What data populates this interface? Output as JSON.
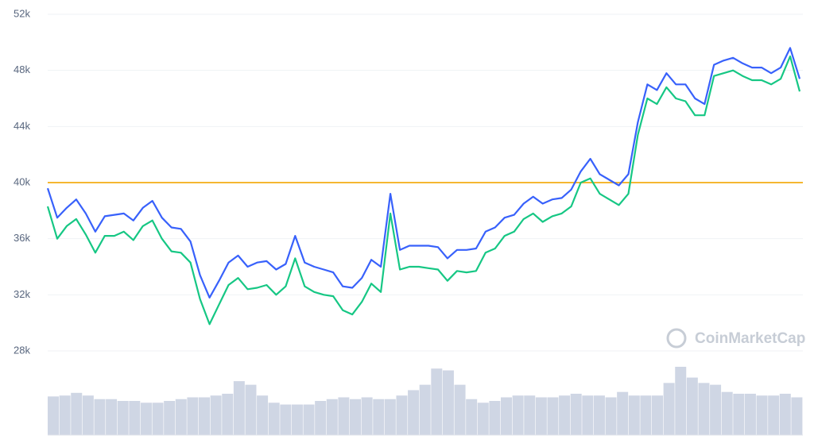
{
  "chart_data": {
    "type": "line",
    "ylim": [
      28000,
      52000
    ],
    "yticks": [
      {
        "value": 28000,
        "label": "28k"
      },
      {
        "value": 32000,
        "label": "32k"
      },
      {
        "value": 36000,
        "label": "36k"
      },
      {
        "value": 40000,
        "label": "40k"
      },
      {
        "value": 44000,
        "label": "44k"
      },
      {
        "value": 48000,
        "label": "48k"
      },
      {
        "value": 52000,
        "label": "52k"
      }
    ],
    "grid": true,
    "reference_line": {
      "value": 40000,
      "color": "#f5b731"
    },
    "series": [
      {
        "color": "#3861fb",
        "values": [
          39600,
          37500,
          38200,
          38800,
          37800,
          36500,
          37600,
          37700,
          37800,
          37300,
          38200,
          38700,
          37500,
          36800,
          36700,
          35800,
          33400,
          31800,
          33000,
          34300,
          34800,
          34000,
          34300,
          34400,
          33800,
          34200,
          36200,
          34300,
          34000,
          33800,
          33600,
          32600,
          32500,
          33200,
          34500,
          34000,
          39200,
          35200,
          35500,
          35500,
          35500,
          35400,
          34600,
          35200,
          35200,
          35300,
          36500,
          36800,
          37500,
          37700,
          38500,
          39000,
          38500,
          38800,
          38900,
          39500,
          40800,
          41700,
          40600,
          40200,
          39800,
          40600,
          44300,
          47000,
          46600,
          47800,
          47000,
          47000,
          46000,
          45600,
          48400,
          48700,
          48900,
          48500,
          48200,
          48200,
          47800,
          48200,
          49600,
          47400
        ]
      },
      {
        "color": "#16c784",
        "values": [
          38300,
          36000,
          36900,
          37400,
          36300,
          35000,
          36200,
          36200,
          36500,
          35900,
          36900,
          37300,
          36000,
          35100,
          35000,
          34300,
          31700,
          29900,
          31300,
          32700,
          33200,
          32400,
          32500,
          32700,
          32000,
          32600,
          34600,
          32600,
          32200,
          32000,
          31900,
          30900,
          30600,
          31500,
          32800,
          32200,
          37800,
          33800,
          34000,
          34000,
          33900,
          33800,
          33000,
          33700,
          33600,
          33700,
          35000,
          35300,
          36200,
          36500,
          37400,
          37800,
          37200,
          37600,
          37800,
          38300,
          40000,
          40300,
          39200,
          38800,
          38400,
          39200,
          43400,
          46000,
          45600,
          46800,
          46000,
          45800,
          44800,
          44800,
          47600,
          47800,
          48000,
          47600,
          47300,
          47300,
          47000,
          47400,
          49000,
          46500
        ]
      }
    ],
    "volume": {
      "color": "#cfd6e4",
      "values": [
        43,
        44,
        47,
        44,
        40,
        40,
        38,
        38,
        36,
        36,
        38,
        40,
        42,
        42,
        44,
        46,
        60,
        56,
        44,
        36,
        34,
        34,
        34,
        38,
        40,
        42,
        40,
        42,
        40,
        40,
        44,
        50,
        56,
        74,
        72,
        56,
        40,
        36,
        38,
        42,
        44,
        44,
        42,
        42,
        44,
        46,
        44,
        44,
        42,
        48,
        44,
        44,
        44,
        58,
        76,
        64,
        58,
        56,
        48,
        46,
        46,
        44,
        44,
        46,
        42
      ]
    },
    "watermark": "CoinMarketCap"
  }
}
